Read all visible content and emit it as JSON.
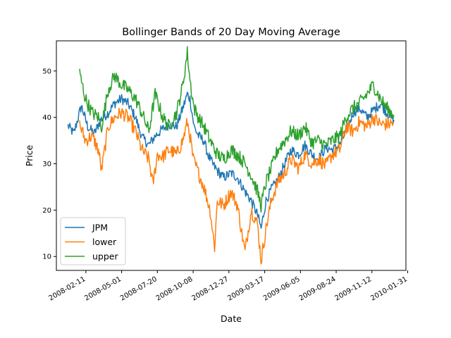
{
  "chart_data": {
    "type": "line",
    "title": "Bollinger Bands of 20 Day Moving Average",
    "xlabel": "Date",
    "ylabel": "Price",
    "x_start": "2008-01-02",
    "x_end": "2009-12-31",
    "xlim": [
      "2007-12-07",
      "2010-01-27"
    ],
    "ylim": [
      7,
      56.5
    ],
    "x_ticks": [
      "2008-02-11",
      "2008-05-01",
      "2008-07-20",
      "2008-10-08",
      "2008-12-27",
      "2009-03-17",
      "2009-06-05",
      "2009-08-24",
      "2009-11-12",
      "2010-01-31"
    ],
    "y_ticks": [
      10,
      20,
      30,
      40,
      50
    ],
    "legend_position": "lower-left",
    "grid": false,
    "series": [
      {
        "name": "JPM",
        "color": "#1f77b4",
        "x": [
          "2008-01-02",
          "2008-01-15",
          "2008-02-01",
          "2008-02-15",
          "2008-03-01",
          "2008-03-15",
          "2008-04-01",
          "2008-04-15",
          "2008-05-01",
          "2008-05-15",
          "2008-06-01",
          "2008-06-15",
          "2008-07-01",
          "2008-07-15",
          "2008-08-01",
          "2008-08-15",
          "2008-09-01",
          "2008-09-15",
          "2008-09-25",
          "2008-10-01",
          "2008-10-10",
          "2008-10-20",
          "2008-11-01",
          "2008-11-10",
          "2008-11-20",
          "2008-12-01",
          "2008-12-15",
          "2009-01-01",
          "2009-01-15",
          "2009-02-01",
          "2009-02-15",
          "2009-03-01",
          "2009-03-09",
          "2009-03-20",
          "2009-04-01",
          "2009-04-15",
          "2009-05-01",
          "2009-05-15",
          "2009-06-01",
          "2009-06-15",
          "2009-07-01",
          "2009-07-15",
          "2009-08-01",
          "2009-08-15",
          "2009-09-01",
          "2009-09-15",
          "2009-10-01",
          "2009-10-15",
          "2009-11-01",
          "2009-11-15",
          "2009-12-01",
          "2009-12-15",
          "2009-12-31"
        ],
        "values": [
          38.2,
          36.5,
          42.5,
          38,
          36.5,
          39.5,
          41,
          43,
          44,
          43,
          40,
          35.8,
          34,
          36,
          37.5,
          38.5,
          38,
          42,
          45,
          44,
          38,
          36,
          35,
          32,
          30,
          28.5,
          27,
          28,
          27,
          24,
          22,
          19,
          16,
          22,
          24.5,
          26.5,
          30,
          33,
          32,
          34,
          32,
          31,
          33.5,
          33,
          34,
          37,
          41,
          42,
          40,
          41.5,
          43,
          41,
          39.5
        ]
      },
      {
        "name": "lower",
        "color": "#ff7f0e",
        "x": [
          "2008-01-28",
          "2008-02-10",
          "2008-02-25",
          "2008-03-10",
          "2008-03-17",
          "2008-04-01",
          "2008-04-15",
          "2008-05-01",
          "2008-05-15",
          "2008-06-01",
          "2008-06-15",
          "2008-07-01",
          "2008-07-10",
          "2008-07-20",
          "2008-08-01",
          "2008-08-15",
          "2008-09-01",
          "2008-09-15",
          "2008-09-25",
          "2008-10-01",
          "2008-10-08",
          "2008-10-20",
          "2008-11-01",
          "2008-11-15",
          "2008-11-25",
          "2008-12-01",
          "2008-12-15",
          "2009-01-01",
          "2009-01-15",
          "2009-01-25",
          "2009-02-01",
          "2009-02-15",
          "2009-03-01",
          "2009-03-09",
          "2009-03-20",
          "2009-04-01",
          "2009-04-15",
          "2009-05-01",
          "2009-05-15",
          "2009-06-01",
          "2009-06-15",
          "2009-07-01",
          "2009-07-15",
          "2009-08-01",
          "2009-08-15",
          "2009-09-01",
          "2009-09-15",
          "2009-10-01",
          "2009-10-15",
          "2009-11-01",
          "2009-11-15",
          "2009-12-01",
          "2009-12-15",
          "2009-12-31"
        ],
        "values": [
          38.5,
          35,
          36,
          33,
          28.5,
          38,
          40,
          41,
          40,
          37,
          33,
          31,
          25.5,
          32,
          31.5,
          33,
          32,
          35,
          39,
          36,
          31,
          28,
          25,
          20,
          12,
          22,
          21,
          24,
          21,
          15,
          11,
          20,
          17,
          9,
          16,
          22,
          26,
          28,
          31,
          29,
          32,
          30,
          31,
          29.5,
          32,
          33,
          38,
          37,
          39,
          38,
          40,
          38.5,
          38.5,
          38.8
        ]
      },
      {
        "name": "upper",
        "color": "#2ca02c",
        "x": [
          "2008-01-28",
          "2008-02-10",
          "2008-02-25",
          "2008-03-10",
          "2008-03-17",
          "2008-04-01",
          "2008-04-15",
          "2008-05-01",
          "2008-05-15",
          "2008-06-01",
          "2008-06-15",
          "2008-07-01",
          "2008-07-15",
          "2008-08-01",
          "2008-08-15",
          "2008-09-01",
          "2008-09-15",
          "2008-09-25",
          "2008-10-01",
          "2008-10-10",
          "2008-10-20",
          "2008-11-01",
          "2008-11-15",
          "2008-12-01",
          "2008-12-15",
          "2009-01-01",
          "2009-01-15",
          "2009-02-01",
          "2009-02-15",
          "2009-03-01",
          "2009-03-09",
          "2009-03-20",
          "2009-04-01",
          "2009-04-15",
          "2009-05-01",
          "2009-05-15",
          "2009-06-01",
          "2009-06-15",
          "2009-07-01",
          "2009-07-15",
          "2009-08-01",
          "2009-08-15",
          "2009-09-01",
          "2009-09-15",
          "2009-10-01",
          "2009-10-15",
          "2009-11-01",
          "2009-11-15",
          "2009-12-01",
          "2009-12-15",
          "2009-12-31"
        ],
        "values": [
          49.5,
          44,
          41,
          40,
          38,
          46,
          49,
          47,
          46,
          44,
          41,
          37,
          45,
          40,
          38,
          41,
          47,
          54,
          48,
          42,
          40,
          38,
          35,
          32,
          31,
          33,
          32,
          30,
          27.5,
          24,
          21,
          26,
          29,
          33,
          35,
          37,
          36,
          38,
          34.5,
          35,
          34,
          35,
          36,
          40,
          42,
          43,
          45,
          47,
          44,
          42,
          40.5
        ]
      }
    ]
  }
}
